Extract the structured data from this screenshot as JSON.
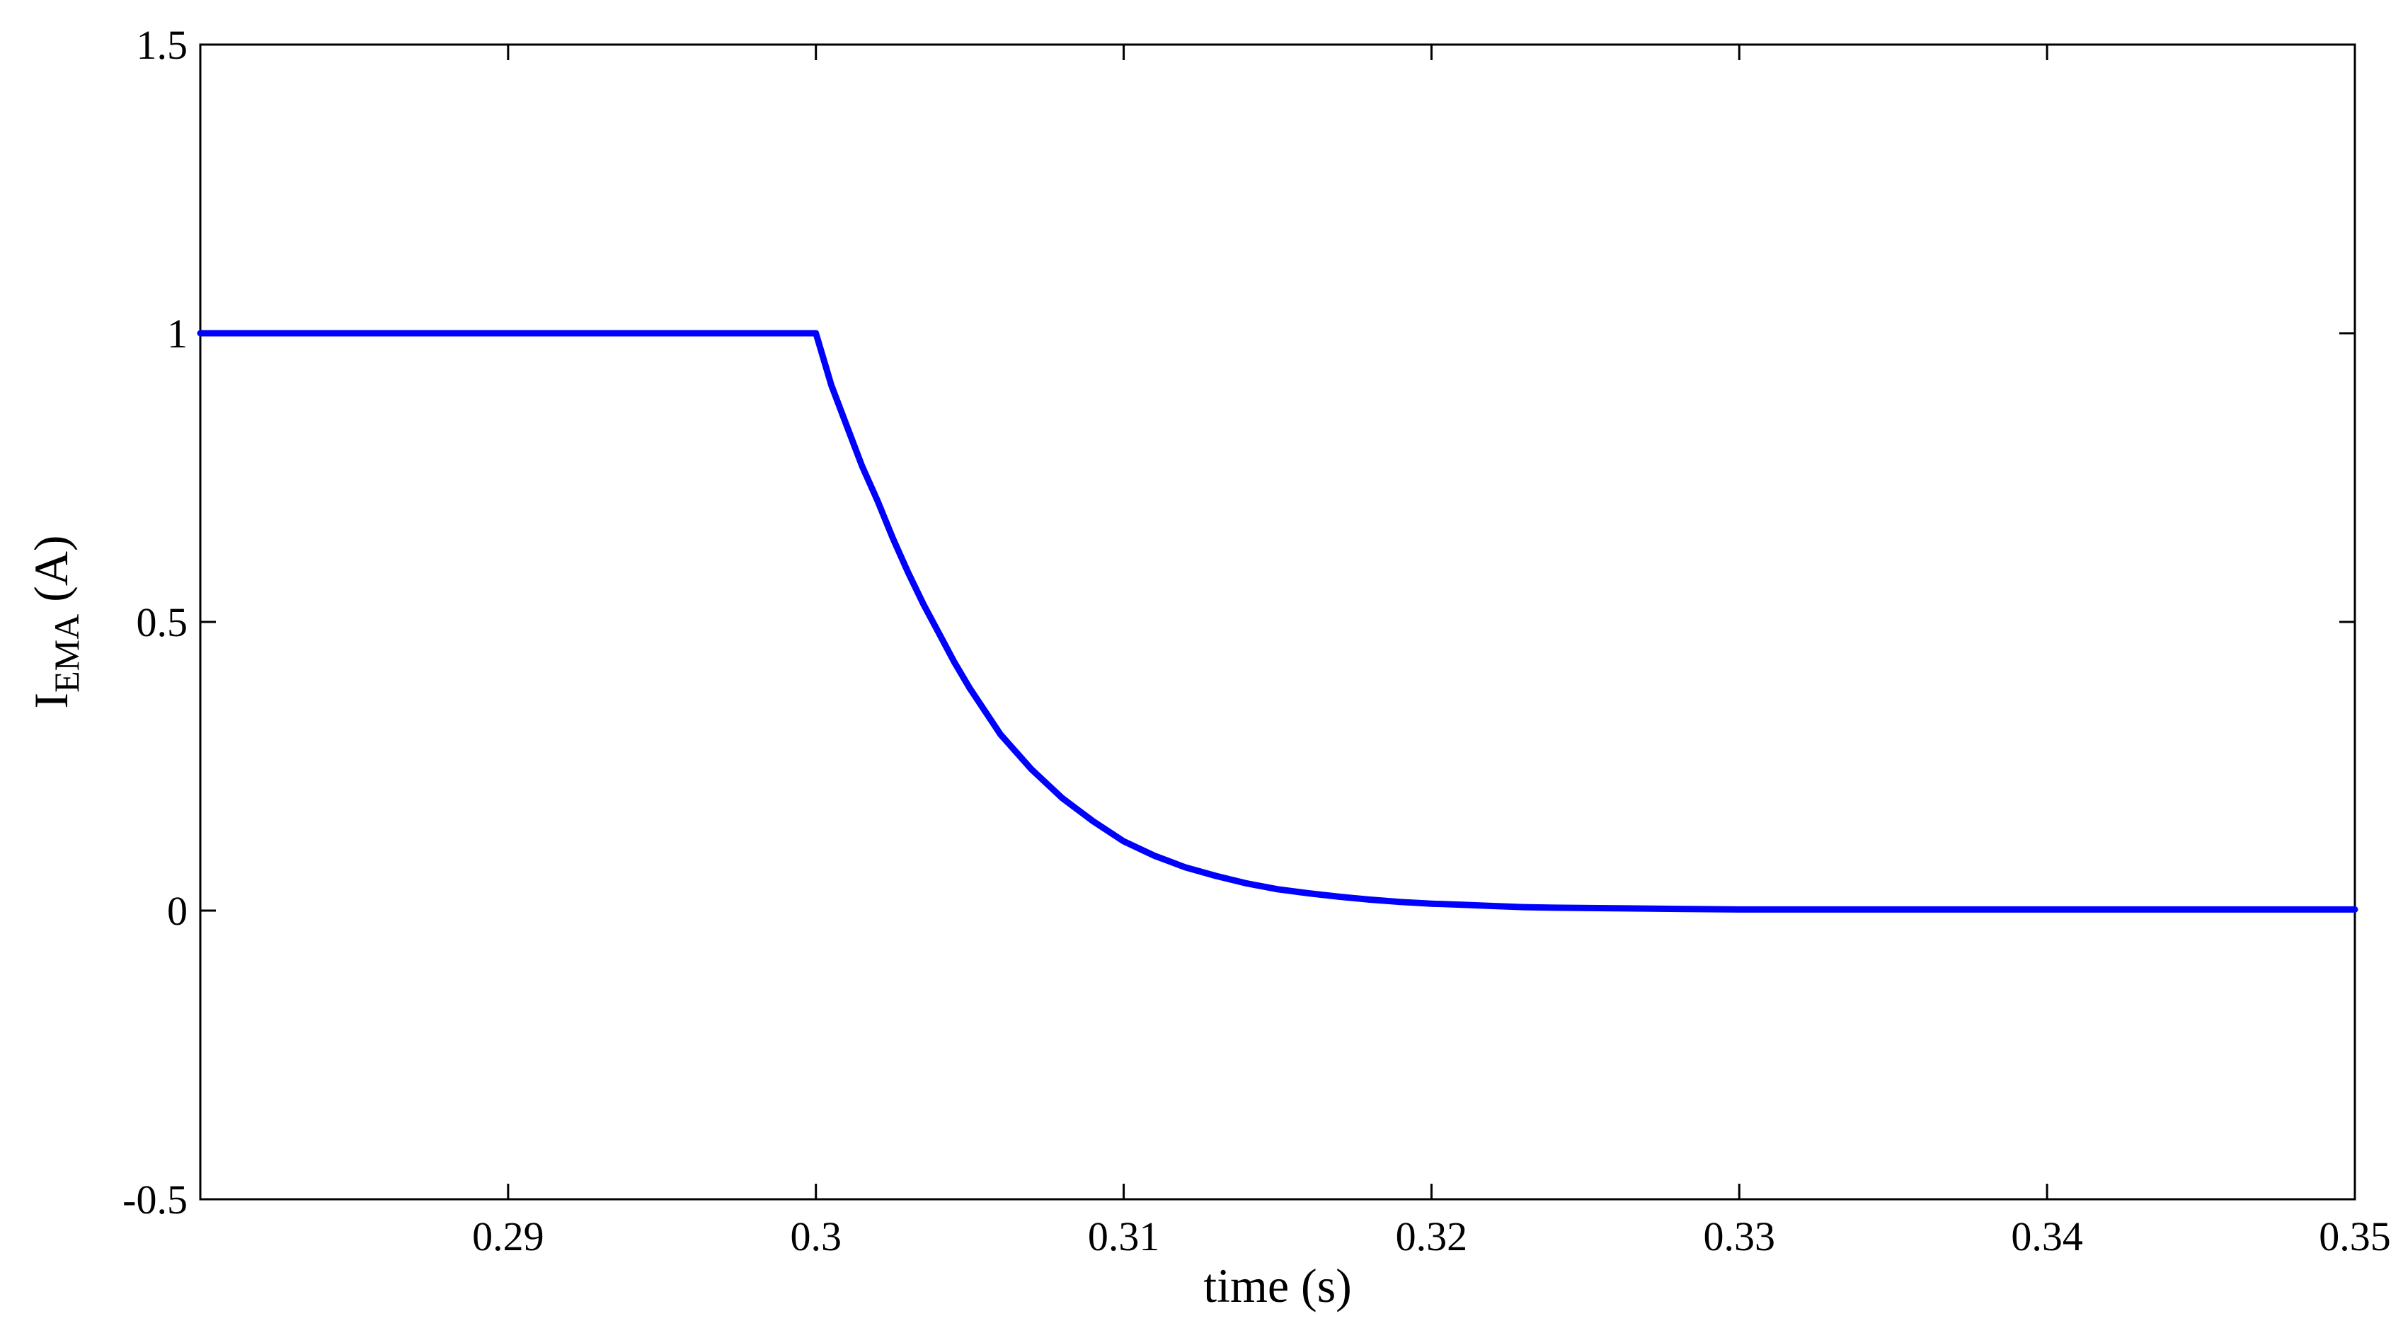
{
  "chart_data": {
    "type": "line",
    "title": "",
    "xlabel": "time (s)",
    "ylabel": {
      "main": "I",
      "subscript": "EMA",
      "suffix": " (A)"
    },
    "xlim": [
      0.28,
      0.35
    ],
    "ylim": [
      -0.5,
      1.5
    ],
    "xticks": [
      0.29,
      0.3,
      0.31,
      0.32,
      0.33,
      0.34,
      0.35
    ],
    "xtick_labels": [
      "0.29",
      "0.3",
      "0.31",
      "0.32",
      "0.33",
      "0.34",
      "0.35"
    ],
    "yticks": [
      -0.5,
      0,
      0.5,
      1,
      1.5
    ],
    "ytick_labels": [
      "-0.5",
      "0",
      "0.5",
      "1",
      "1.5"
    ],
    "grid": false,
    "legend": "none",
    "line_color": "#0000ff",
    "series": [
      {
        "x": [
          0.28,
          0.29,
          0.3,
          0.3005,
          0.301,
          0.3015,
          0.302,
          0.3025,
          0.303,
          0.3035,
          0.304,
          0.3045,
          0.305,
          0.3055,
          0.306,
          0.307,
          0.308,
          0.309,
          0.31,
          0.311,
          0.312,
          0.313,
          0.314,
          0.315,
          0.316,
          0.317,
          0.318,
          0.319,
          0.32,
          0.321,
          0.322,
          0.323,
          0.324,
          0.326,
          0.328,
          0.33,
          0.335,
          0.34,
          0.345,
          0.35
        ],
        "y": [
          1.0,
          1.0,
          1.0,
          0.91,
          0.84,
          0.77,
          0.71,
          0.645,
          0.585,
          0.53,
          0.48,
          0.43,
          0.385,
          0.345,
          0.305,
          0.245,
          0.195,
          0.155,
          0.12,
          0.095,
          0.075,
          0.06,
          0.047,
          0.037,
          0.03,
          0.024,
          0.019,
          0.015,
          0.012,
          0.01,
          0.008,
          0.006,
          0.005,
          0.004,
          0.003,
          0.002,
          0.002,
          0.002,
          0.002,
          0.002
        ]
      }
    ]
  }
}
